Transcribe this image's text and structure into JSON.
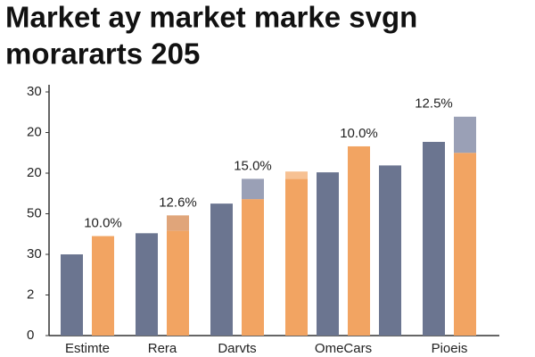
{
  "chart_data": {
    "type": "bar",
    "title": [
      "Market ay market marke svgn",
      "morararts 205"
    ],
    "categories": [
      "Estimte",
      "Rera",
      "Darvts",
      "OmeCars",
      "Pioeis"
    ],
    "series": [
      {
        "color": "#f2a462",
        "values": [
          null,
          null,
          null,
          3.86,
          null
        ]
      },
      {
        "color": "#f7c193",
        "stacked": true,
        "values": [
          null,
          null,
          null,
          0.18,
          null
        ]
      },
      {
        "color": "#6b7590",
        "values": [
          2.0,
          2.52,
          3.25,
          4.02,
          4.77
        ]
      },
      {
        "color": "#f2a462",
        "values": [
          2.45,
          2.58,
          3.36,
          4.66,
          4.5
        ]
      },
      {
        "color": "#9aa0b6",
        "stacked": true,
        "values": [
          null,
          null,
          0.5,
          null,
          0.89
        ]
      },
      {
        "color": "#e0a57a",
        "stacked": true,
        "values": [
          null,
          0.38,
          null,
          null,
          null
        ]
      },
      {
        "color": "#6b7590",
        "values": [
          null,
          null,
          null,
          4.19,
          null
        ]
      }
    ],
    "annotations": [
      "10.0%",
      "12.6%",
      "15.0%",
      "10.0%",
      "12.5%"
    ],
    "ylim": [
      0,
      6.2
    ],
    "yticks": [
      {
        "value": 0,
        "label": "0"
      },
      {
        "value": 1,
        "label": "2"
      },
      {
        "value": 2,
        "label": "30"
      },
      {
        "value": 3,
        "label": "50"
      },
      {
        "value": 4,
        "label": "20"
      },
      {
        "value": 5,
        "label": "20"
      },
      {
        "value": 6,
        "label": "30"
      }
    ]
  }
}
